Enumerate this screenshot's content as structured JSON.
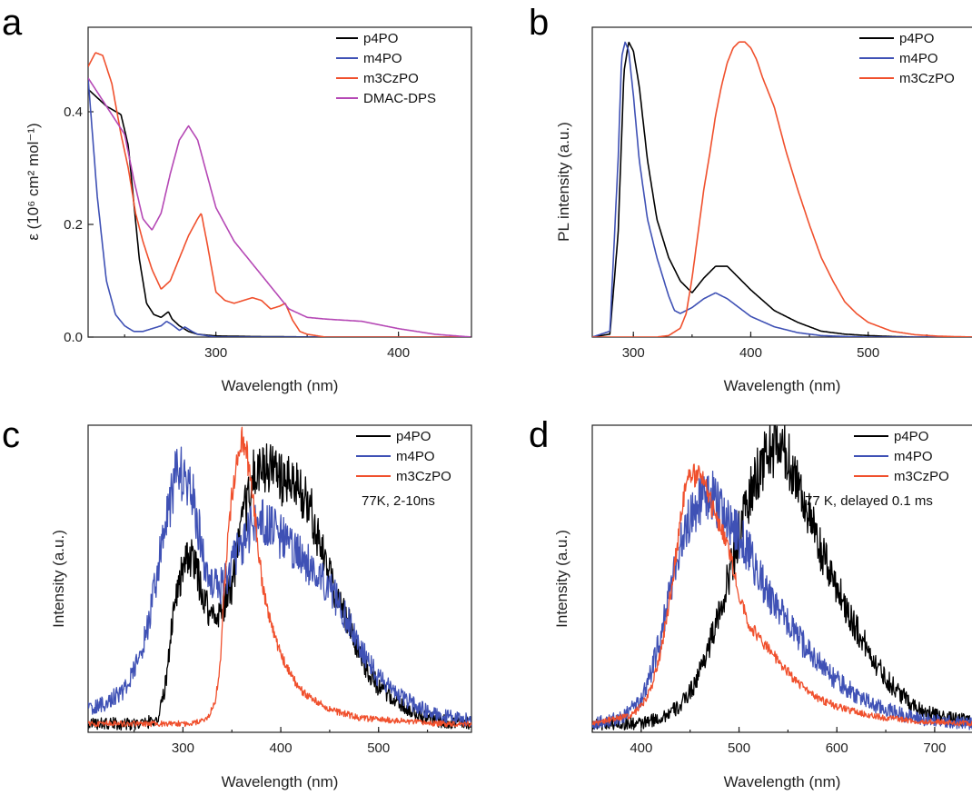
{
  "chart_data": [
    {
      "panel": "a",
      "type": "line",
      "xlabel": "Wavelength (nm)",
      "ylabel": "ε (10⁶ cm² mol⁻¹)",
      "xlim": [
        230,
        440
      ],
      "ylim": [
        0,
        0.55
      ],
      "xticks": [
        300,
        400
      ],
      "yticks": [
        0.0,
        0.2,
        0.4
      ],
      "ytick_labels": [
        "0.0",
        "0.2",
        "0.4"
      ],
      "legend_position": "top-right",
      "series": [
        {
          "name": "p4PO",
          "color": "#000000",
          "x": [
            230,
            240,
            248,
            252,
            258,
            262,
            266,
            270,
            274,
            276,
            280,
            285,
            290,
            300,
            320,
            360,
            440
          ],
          "y": [
            0.44,
            0.41,
            0.395,
            0.34,
            0.14,
            0.06,
            0.04,
            0.035,
            0.045,
            0.032,
            0.02,
            0.01,
            0.005,
            0.002,
            0.001,
            0.0,
            0.0
          ]
        },
        {
          "name": "m4PO",
          "color": "#3f51b5",
          "x": [
            230,
            235,
            240,
            245,
            250,
            255,
            260,
            265,
            270,
            273,
            276,
            280,
            283,
            287,
            290,
            300,
            440
          ],
          "y": [
            0.46,
            0.25,
            0.1,
            0.04,
            0.02,
            0.01,
            0.01,
            0.015,
            0.02,
            0.028,
            0.022,
            0.012,
            0.018,
            0.01,
            0.005,
            0.0,
            0.0
          ]
        },
        {
          "name": "m3CzPO",
          "color": "#f0502d",
          "x": [
            230,
            234,
            238,
            243,
            248,
            252,
            256,
            260,
            265,
            270,
            275,
            280,
            285,
            290,
            292,
            295,
            300,
            305,
            310,
            320,
            325,
            330,
            335,
            338,
            342,
            346,
            350,
            360,
            440
          ],
          "y": [
            0.48,
            0.505,
            0.5,
            0.45,
            0.36,
            0.3,
            0.22,
            0.17,
            0.12,
            0.085,
            0.1,
            0.14,
            0.18,
            0.21,
            0.22,
            0.17,
            0.08,
            0.065,
            0.06,
            0.07,
            0.065,
            0.05,
            0.055,
            0.06,
            0.03,
            0.01,
            0.005,
            0.0,
            0.0
          ]
        },
        {
          "name": "DMAC-DPS",
          "color": "#b548b5",
          "x": [
            230,
            240,
            250,
            255,
            260,
            265,
            270,
            275,
            280,
            285,
            290,
            295,
            300,
            310,
            320,
            330,
            340,
            350,
            360,
            380,
            400,
            420,
            440
          ],
          "y": [
            0.46,
            0.41,
            0.36,
            0.28,
            0.21,
            0.19,
            0.22,
            0.29,
            0.35,
            0.375,
            0.35,
            0.29,
            0.23,
            0.17,
            0.13,
            0.09,
            0.05,
            0.035,
            0.032,
            0.028,
            0.015,
            0.005,
            0.0
          ]
        }
      ]
    },
    {
      "panel": "b",
      "type": "line",
      "xlabel": "Wavelength (nm)",
      "ylabel": "PL intensity (a.u.)",
      "xlim": [
        265,
        590
      ],
      "ylim": [
        0,
        1.05
      ],
      "xticks": [
        300,
        400,
        500
      ],
      "legend_position": "top-right",
      "series": [
        {
          "name": "p4PO",
          "color": "#000000",
          "x": [
            265,
            280,
            287,
            292,
            296,
            300,
            305,
            312,
            320,
            330,
            340,
            350,
            360,
            370,
            380,
            390,
            400,
            420,
            440,
            460,
            480,
            500,
            520,
            540,
            590
          ],
          "y": [
            0,
            0.01,
            0.35,
            0.9,
            1.0,
            0.97,
            0.85,
            0.6,
            0.4,
            0.27,
            0.19,
            0.15,
            0.2,
            0.24,
            0.24,
            0.2,
            0.16,
            0.09,
            0.05,
            0.02,
            0.01,
            0.005,
            0.002,
            0.0,
            0.0
          ]
        },
        {
          "name": "m4PO",
          "color": "#3f51b5",
          "x": [
            265,
            280,
            287,
            290,
            293,
            296,
            300,
            305,
            312,
            320,
            330,
            335,
            340,
            350,
            360,
            370,
            380,
            390,
            400,
            420,
            440,
            460,
            480,
            500,
            590
          ],
          "y": [
            0,
            0.02,
            0.6,
            0.95,
            1.0,
            0.97,
            0.82,
            0.6,
            0.4,
            0.27,
            0.14,
            0.09,
            0.08,
            0.1,
            0.13,
            0.15,
            0.13,
            0.1,
            0.07,
            0.035,
            0.015,
            0.005,
            0.002,
            0.0,
            0.0
          ]
        },
        {
          "name": "m3CzPO",
          "color": "#f0502d",
          "x": [
            265,
            320,
            330,
            340,
            345,
            350,
            355,
            360,
            365,
            370,
            375,
            380,
            385,
            390,
            395,
            400,
            405,
            410,
            420,
            430,
            440,
            450,
            460,
            470,
            480,
            490,
            500,
            520,
            540,
            560,
            590
          ],
          "y": [
            0,
            0,
            0.005,
            0.03,
            0.08,
            0.2,
            0.35,
            0.5,
            0.62,
            0.75,
            0.85,
            0.93,
            0.98,
            1.0,
            1.0,
            0.98,
            0.94,
            0.88,
            0.78,
            0.63,
            0.5,
            0.38,
            0.27,
            0.19,
            0.12,
            0.08,
            0.05,
            0.02,
            0.008,
            0.003,
            0.0
          ]
        }
      ]
    },
    {
      "panel": "c",
      "type": "line",
      "xlabel": "Wavelength (nm)",
      "ylabel": "Intensity (a.u.)",
      "xlim": [
        203,
        595
      ],
      "ylim": [
        -0.03,
        1.04
      ],
      "xticks": [
        300,
        400,
        500
      ],
      "annotation": "77K, 2-10ns",
      "legend_position": "top-right",
      "series": [
        {
          "name": "p4PO",
          "color": "#000000",
          "x": [
            203,
            260,
            275,
            283,
            290,
            300,
            310,
            320,
            330,
            340,
            350,
            360,
            370,
            380,
            390,
            400,
            410,
            420,
            430,
            440,
            450,
            460,
            470,
            480,
            490,
            500,
            520,
            540,
            560,
            595
          ],
          "y": [
            0,
            0.0,
            0.02,
            0.15,
            0.4,
            0.55,
            0.58,
            0.45,
            0.37,
            0.4,
            0.48,
            0.68,
            0.85,
            0.88,
            0.9,
            0.85,
            0.83,
            0.82,
            0.75,
            0.62,
            0.52,
            0.42,
            0.35,
            0.25,
            0.18,
            0.13,
            0.07,
            0.03,
            0.01,
            0.0
          ]
        },
        {
          "name": "m4PO",
          "color": "#3f51b5",
          "x": [
            203,
            220,
            240,
            255,
            265,
            275,
            285,
            292,
            300,
            308,
            315,
            322,
            330,
            340,
            350,
            360,
            370,
            380,
            390,
            400,
            410,
            420,
            430,
            440,
            450,
            460,
            470,
            480,
            490,
            500,
            520,
            540,
            560,
            580,
            595
          ],
          "y": [
            0.05,
            0.07,
            0.12,
            0.22,
            0.35,
            0.55,
            0.75,
            0.85,
            0.88,
            0.82,
            0.7,
            0.55,
            0.5,
            0.48,
            0.55,
            0.63,
            0.68,
            0.7,
            0.68,
            0.65,
            0.62,
            0.58,
            0.55,
            0.52,
            0.47,
            0.42,
            0.35,
            0.28,
            0.22,
            0.16,
            0.1,
            0.06,
            0.03,
            0.02,
            0.01
          ]
        },
        {
          "name": "m3CzPO",
          "color": "#f0502d",
          "x": [
            203,
            310,
            325,
            333,
            338,
            342,
            347,
            352,
            357,
            360,
            365,
            370,
            375,
            380,
            385,
            390,
            400,
            410,
            420,
            430,
            440,
            450,
            460,
            470,
            480,
            500,
            520,
            540,
            560,
            595
          ],
          "y": [
            0,
            0.0,
            0.02,
            0.08,
            0.2,
            0.45,
            0.7,
            0.85,
            0.97,
            1.0,
            0.95,
            0.82,
            0.68,
            0.52,
            0.42,
            0.35,
            0.24,
            0.17,
            0.12,
            0.09,
            0.07,
            0.05,
            0.04,
            0.03,
            0.02,
            0.015,
            0.01,
            0.005,
            0.0,
            0.0
          ]
        }
      ]
    },
    {
      "panel": "d",
      "type": "line",
      "xlabel": "Wavelength (nm)",
      "ylabel": "Intensity (a.u.)",
      "xlim": [
        350,
        740
      ],
      "ylim": [
        -0.03,
        1.04
      ],
      "xticks": [
        400,
        500,
        600,
        700
      ],
      "annotation": "77 K, delayed 0.1 ms",
      "legend_position": "top-right",
      "series": [
        {
          "name": "p4PO",
          "color": "#000000",
          "x": [
            350,
            400,
            420,
            440,
            455,
            470,
            480,
            490,
            500,
            510,
            520,
            530,
            540,
            550,
            560,
            570,
            580,
            590,
            600,
            610,
            620,
            630,
            640,
            650,
            660,
            670,
            680,
            700,
            720,
            740
          ],
          "y": [
            0,
            0.0,
            0.02,
            0.06,
            0.14,
            0.28,
            0.38,
            0.52,
            0.66,
            0.78,
            0.88,
            0.95,
            0.97,
            0.92,
            0.85,
            0.74,
            0.63,
            0.55,
            0.48,
            0.4,
            0.33,
            0.27,
            0.21,
            0.16,
            0.12,
            0.09,
            0.06,
            0.03,
            0.015,
            0.01
          ]
        },
        {
          "name": "m4PO",
          "color": "#3f51b5",
          "x": [
            350,
            380,
            400,
            410,
            420,
            430,
            440,
            450,
            460,
            470,
            480,
            490,
            500,
            510,
            520,
            530,
            540,
            550,
            560,
            570,
            580,
            590,
            600,
            620,
            640,
            660,
            680,
            700,
            740
          ],
          "y": [
            0,
            0.02,
            0.08,
            0.18,
            0.3,
            0.48,
            0.62,
            0.72,
            0.78,
            0.8,
            0.76,
            0.7,
            0.65,
            0.6,
            0.52,
            0.45,
            0.4,
            0.35,
            0.3,
            0.26,
            0.22,
            0.18,
            0.15,
            0.1,
            0.06,
            0.04,
            0.02,
            0.01,
            0.0
          ]
        },
        {
          "name": "m3CzPO",
          "color": "#f0502d",
          "x": [
            350,
            390,
            400,
            410,
            420,
            430,
            440,
            445,
            450,
            455,
            460,
            465,
            470,
            480,
            490,
            500,
            510,
            520,
            530,
            540,
            550,
            560,
            580,
            600,
            620,
            650,
            680,
            740
          ],
          "y": [
            0,
            0.03,
            0.06,
            0.12,
            0.25,
            0.45,
            0.7,
            0.82,
            0.88,
            0.86,
            0.9,
            0.85,
            0.78,
            0.7,
            0.6,
            0.45,
            0.35,
            0.3,
            0.26,
            0.22,
            0.18,
            0.14,
            0.09,
            0.06,
            0.04,
            0.02,
            0.01,
            0.0
          ]
        }
      ]
    }
  ]
}
